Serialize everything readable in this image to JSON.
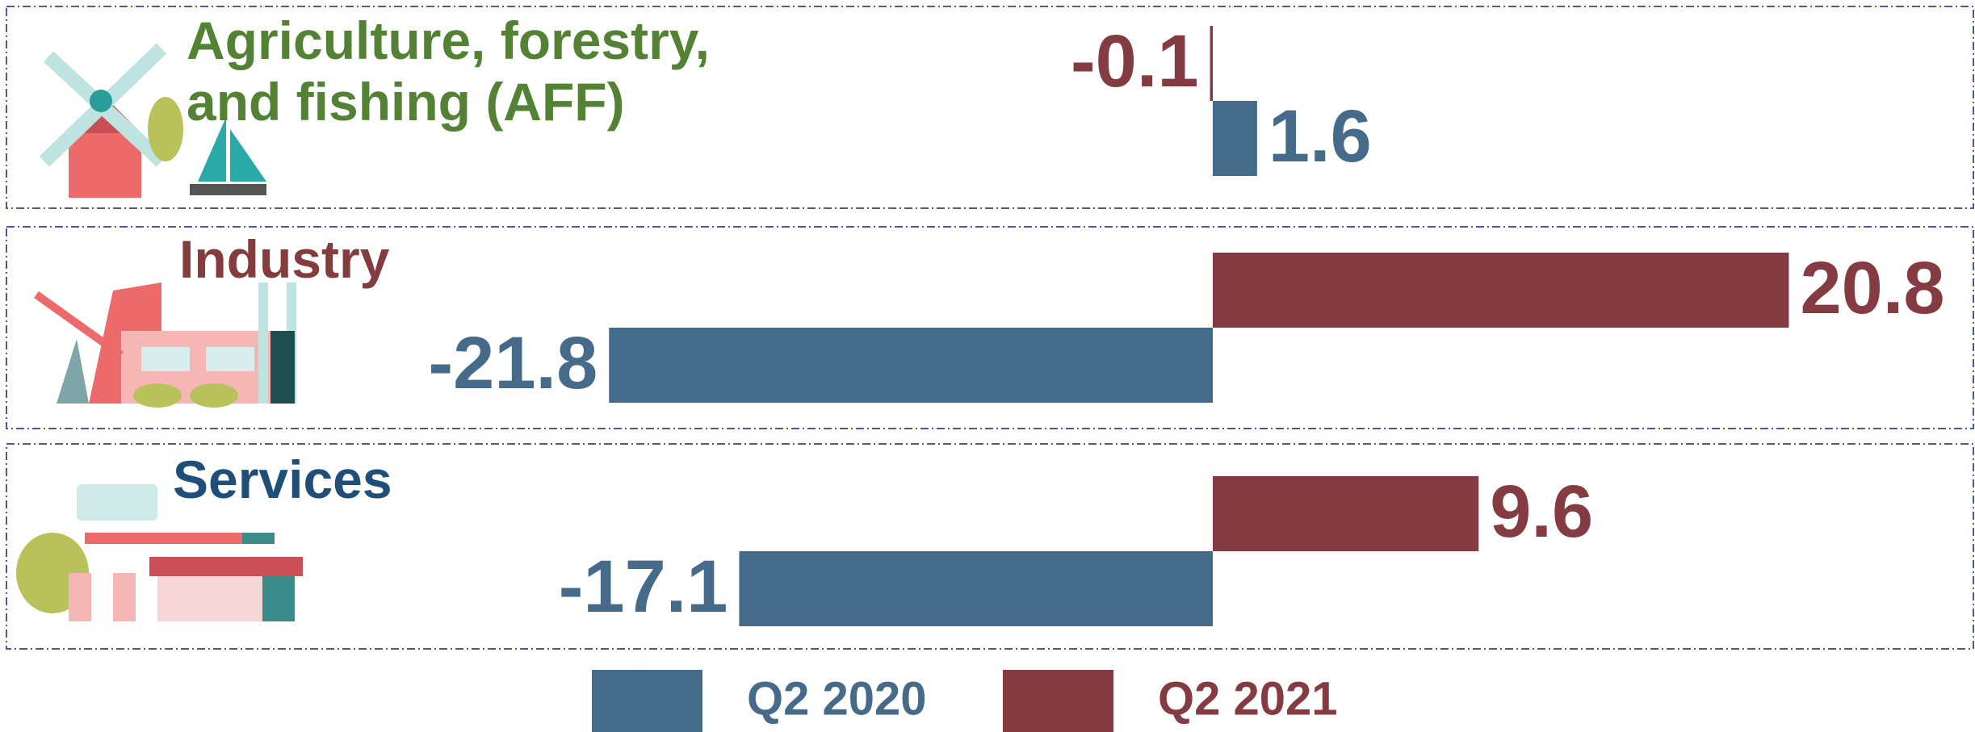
{
  "chart_data": {
    "type": "bar",
    "orientation": "horizontal",
    "categories": [
      "Agriculture, forestry, and fishing (AFF)",
      "Industry",
      "Services"
    ],
    "category_colors": [
      "#548235",
      "#843c3f",
      "#1f4e79"
    ],
    "series": [
      {
        "name": "Q2 2020",
        "color": "#456a8a",
        "values": [
          1.6,
          -21.8,
          -17.1
        ]
      },
      {
        "name": "Q2 2021",
        "color": "#843b41",
        "values": [
          -0.1,
          20.8,
          9.6
        ]
      }
    ]
  }
}
